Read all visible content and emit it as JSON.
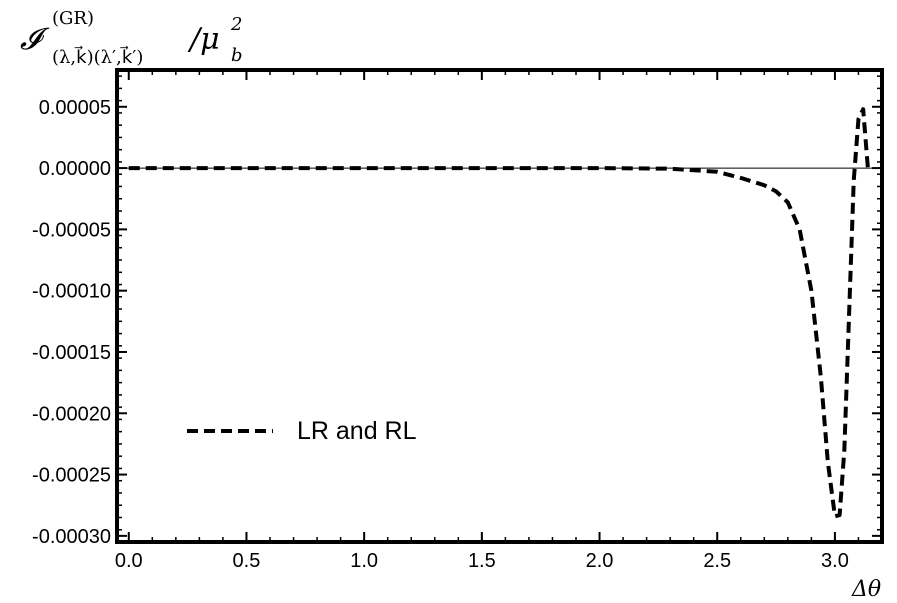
{
  "chart_data": {
    "type": "line",
    "ylabel": {
      "symbol": "𝓘",
      "superscript": "(GR)",
      "subscript": "(λ,k⃗)(λ′,k⃗′)",
      "divisor": "/μ",
      "divisor_sub": "b",
      "divisor_sup": "2"
    },
    "xlabel": "Δθ",
    "xlim": [
      -0.05,
      3.2
    ],
    "ylim": [
      -0.000305,
      8e-05
    ],
    "xticks": [
      0.0,
      0.5,
      1.0,
      1.5,
      2.0,
      2.5,
      3.0
    ],
    "xtick_labels": [
      "0.0",
      "0.5",
      "1.0",
      "1.5",
      "2.0",
      "2.5",
      "3.0"
    ],
    "yticks": [
      5e-05,
      0.0,
      -5e-05,
      -0.0001,
      -0.00015,
      -0.0002,
      -0.00025,
      -0.0003
    ],
    "ytick_labels": [
      "0.00005",
      "0.00000",
      "-0.00005",
      "-0.00010",
      "-0.00015",
      "-0.00020",
      "-0.00025",
      "-0.00030"
    ],
    "grid": false,
    "legend_position": "lower-left",
    "series": [
      {
        "name": "LR and RL",
        "style": "dashed",
        "color": "#000000",
        "x": [
          0.0,
          0.5,
          1.0,
          1.5,
          2.0,
          2.3,
          2.5,
          2.6,
          2.7,
          2.75,
          2.8,
          2.85,
          2.9,
          2.94,
          2.97,
          3.0,
          3.02,
          3.04,
          3.06,
          3.08,
          3.1,
          3.12,
          3.14
        ],
        "y": [
          0.0,
          0.0,
          0.0,
          0.0,
          0.0,
          -5e-07,
          -3e-06,
          -8e-06,
          -1.4e-05,
          -1.9e-05,
          -2.8e-05,
          -5e-05,
          -0.0001,
          -0.00017,
          -0.00024,
          -0.000284,
          -0.000283,
          -0.00023,
          -0.00012,
          -1e-05,
          4e-05,
          4.8e-05,
          0.0
        ]
      }
    ]
  }
}
